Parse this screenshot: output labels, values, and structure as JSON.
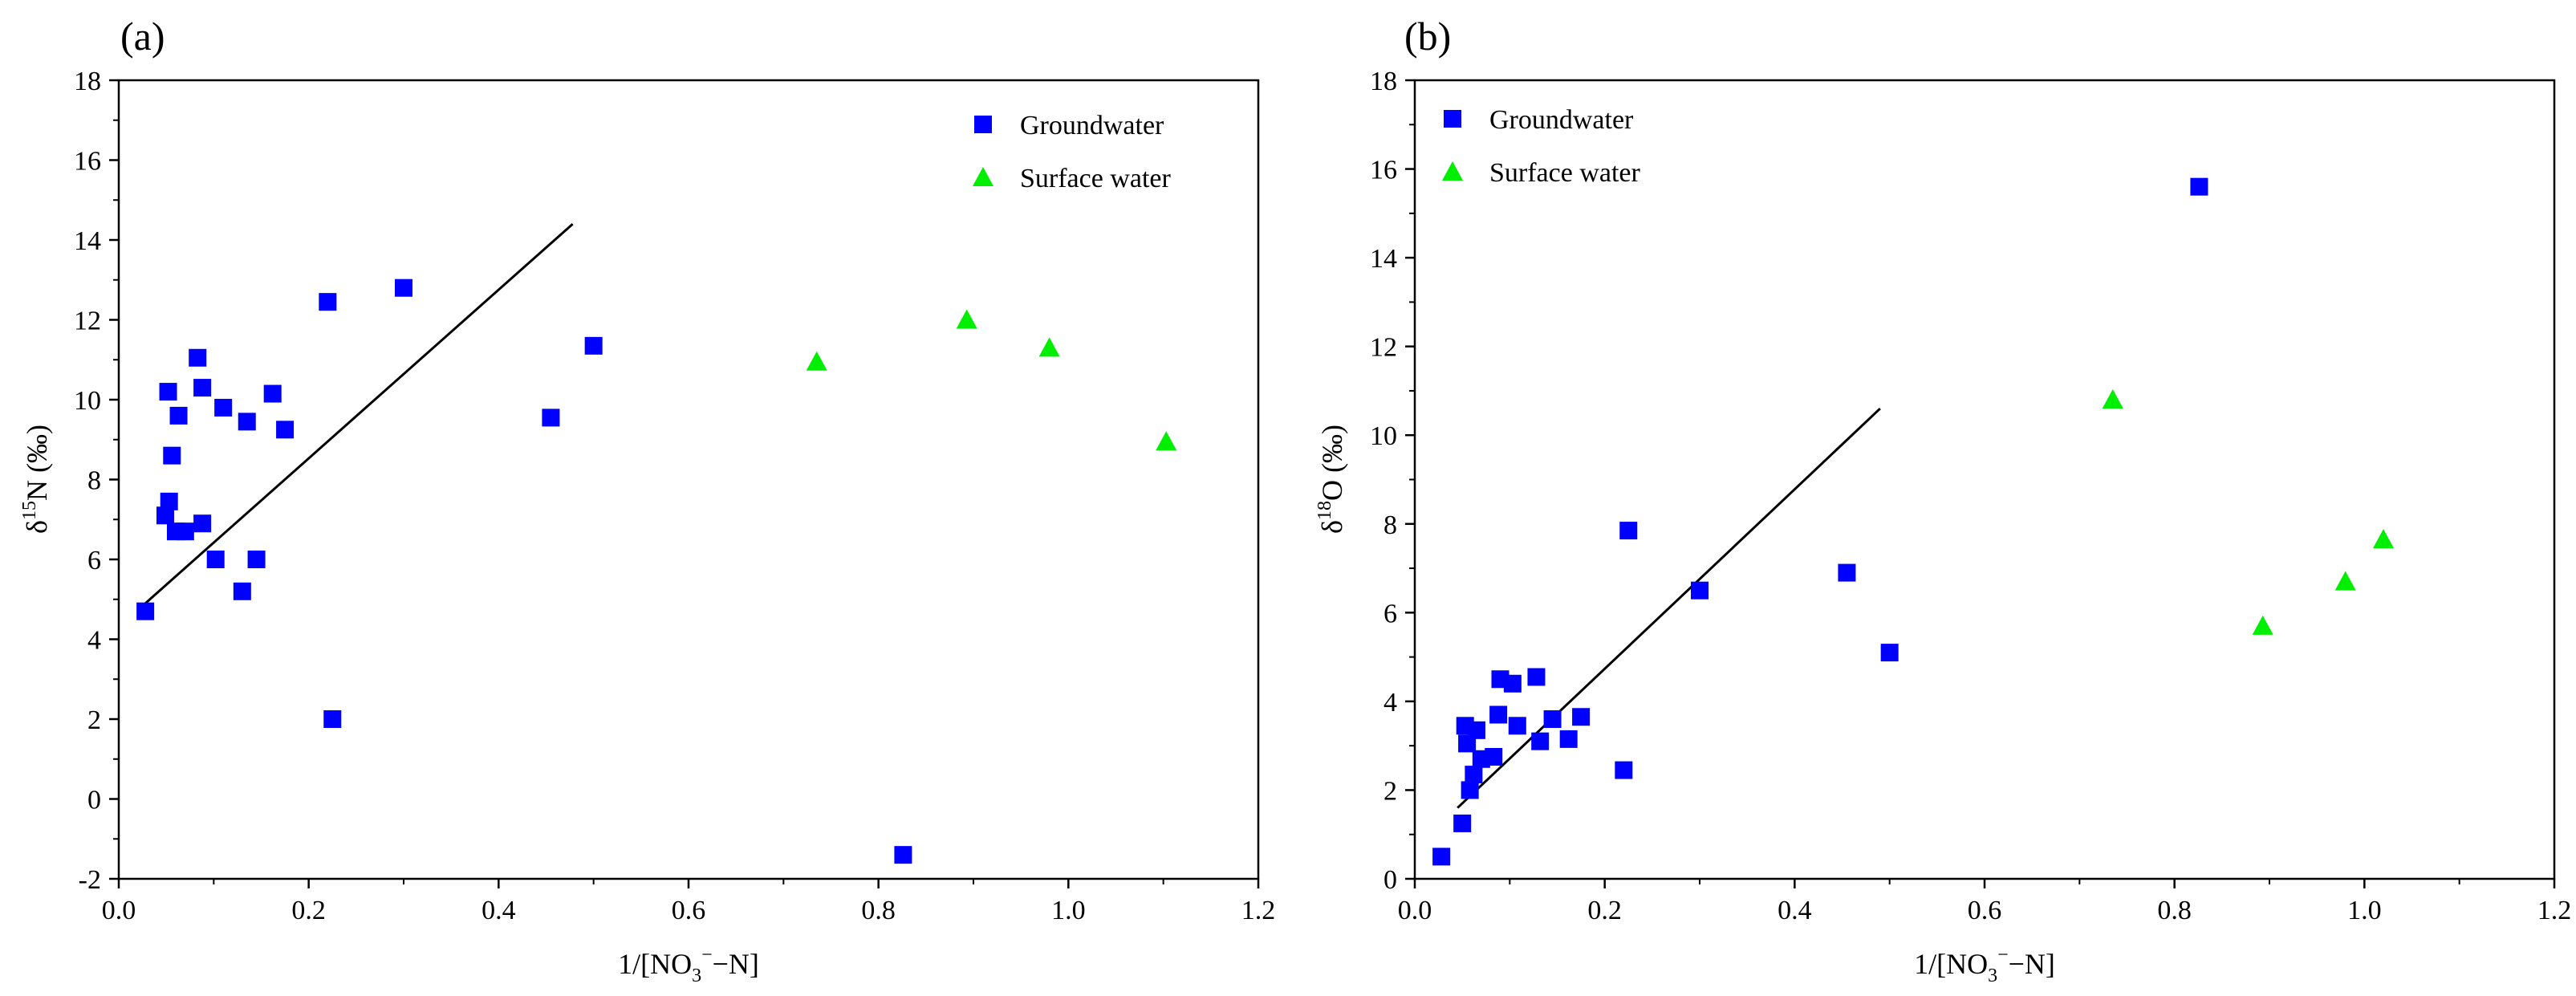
{
  "chart_data": [
    {
      "type": "scatter",
      "panel_label": "(a)",
      "xlabel": "1/[NO3−−N]",
      "xlabel_parts": {
        "pre": "1/[NO",
        "sub": "3",
        "sup": "−",
        "post": "−N]"
      },
      "ylabel": "δ15N (‰)",
      "ylabel_parts": {
        "pre": "δ",
        "sup": "15",
        "post": "N (‰)"
      },
      "xlim": [
        0.0,
        1.2
      ],
      "ylim": [
        -2,
        18
      ],
      "xticks": [
        "0.0",
        "0.2",
        "0.4",
        "0.6",
        "0.8",
        "1.0",
        "1.2"
      ],
      "yticks": [
        "-2",
        "0",
        "2",
        "4",
        "6",
        "8",
        "10",
        "12",
        "14",
        "16",
        "18"
      ],
      "grid": false,
      "legend_position": "top-right",
      "series": [
        {
          "name": "Groundwater",
          "marker": "square",
          "color": "#0000FF",
          "points": [
            [
              0.028,
              4.7
            ],
            [
              0.049,
              7.1
            ],
            [
              0.052,
              10.2
            ],
            [
              0.053,
              7.45
            ],
            [
              0.056,
              8.6
            ],
            [
              0.06,
              6.7
            ],
            [
              0.063,
              9.6
            ],
            [
              0.07,
              6.7
            ],
            [
              0.083,
              11.05
            ],
            [
              0.088,
              10.3
            ],
            [
              0.088,
              6.9
            ],
            [
              0.102,
              6.0
            ],
            [
              0.11,
              9.8
            ],
            [
              0.13,
              5.2
            ],
            [
              0.135,
              9.45
            ],
            [
              0.145,
              6.0
            ],
            [
              0.162,
              10.15
            ],
            [
              0.175,
              9.25
            ],
            [
              0.22,
              12.45
            ],
            [
              0.225,
              2.0
            ],
            [
              0.3,
              12.8
            ],
            [
              0.455,
              9.55
            ],
            [
              0.5,
              11.35
            ],
            [
              0.826,
              -1.4
            ]
          ]
        },
        {
          "name": "Surface water",
          "marker": "triangle",
          "color": "#00EE00",
          "points": [
            [
              0.735,
              10.95
            ],
            [
              0.893,
              12.0
            ],
            [
              0.98,
              11.3
            ],
            [
              1.103,
              8.95
            ]
          ]
        }
      ],
      "fit_line": {
        "x": [
          0.028,
          0.478
        ],
        "y": [
          4.9,
          14.4
        ]
      }
    },
    {
      "type": "scatter",
      "panel_label": "(b)",
      "xlabel": "1/[NO3−−N]",
      "xlabel_parts": {
        "pre": "1/[NO",
        "sub": "3",
        "sup": "−",
        "post": "−N]"
      },
      "ylabel": "δ18O (‰)",
      "ylabel_parts": {
        "pre": "δ",
        "sup": "18",
        "post": "O (‰)"
      },
      "xlim": [
        0.0,
        1.2
      ],
      "ylim": [
        0,
        18
      ],
      "xticks": [
        "0.0",
        "0.2",
        "0.4",
        "0.6",
        "0.8",
        "1.0",
        "1.2"
      ],
      "yticks": [
        "0",
        "2",
        "4",
        "6",
        "8",
        "10",
        "12",
        "14",
        "16",
        "18"
      ],
      "grid": false,
      "legend_position": "top-left",
      "series": [
        {
          "name": "Groundwater",
          "marker": "square",
          "color": "#0000FF",
          "points": [
            [
              0.028,
              0.5
            ],
            [
              0.05,
              1.25
            ],
            [
              0.053,
              3.45
            ],
            [
              0.055,
              3.05
            ],
            [
              0.058,
              2.0
            ],
            [
              0.062,
              2.35
            ],
            [
              0.065,
              3.35
            ],
            [
              0.07,
              2.7
            ],
            [
              0.083,
              2.75
            ],
            [
              0.088,
              3.7
            ],
            [
              0.09,
              4.5
            ],
            [
              0.103,
              4.4
            ],
            [
              0.108,
              3.45
            ],
            [
              0.128,
              4.55
            ],
            [
              0.132,
              3.1
            ],
            [
              0.145,
              3.6
            ],
            [
              0.162,
              3.15
            ],
            [
              0.175,
              3.65
            ],
            [
              0.22,
              2.45
            ],
            [
              0.225,
              7.85
            ],
            [
              0.3,
              6.5
            ],
            [
              0.455,
              6.9
            ],
            [
              0.5,
              5.1
            ],
            [
              0.826,
              15.6
            ]
          ]
        },
        {
          "name": "Surface water",
          "marker": "triangle",
          "color": "#00EE00",
          "points": [
            [
              0.735,
              10.8
            ],
            [
              0.893,
              5.7
            ],
            [
              0.98,
              6.7
            ],
            [
              1.02,
              7.65
            ]
          ]
        }
      ],
      "fit_line": {
        "x": [
          0.045,
          0.49
        ],
        "y": [
          1.6,
          10.6
        ]
      }
    }
  ]
}
